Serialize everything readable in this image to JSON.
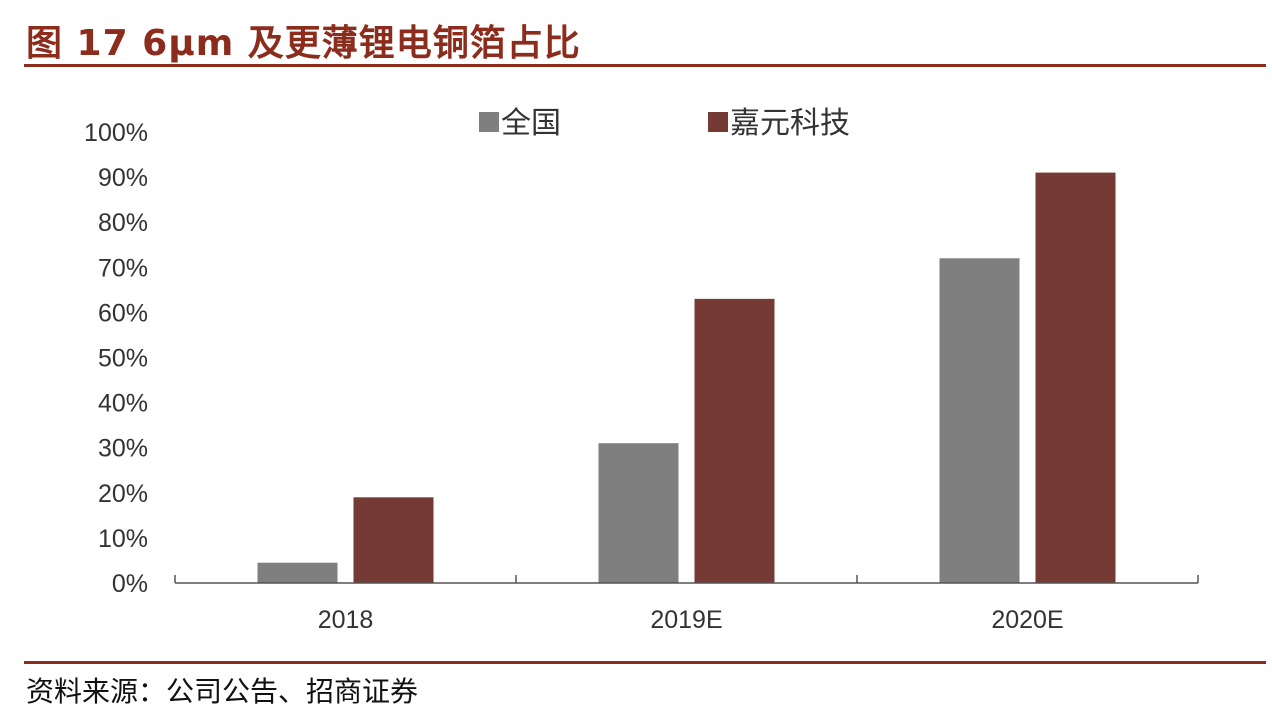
{
  "header": {
    "title": "图 17 6μm 及更薄锂电铜箔占比"
  },
  "footer": {
    "source": "资料来源：公司公告、招商证券"
  },
  "chart_data": {
    "type": "bar",
    "categories": [
      "2018",
      "2019E",
      "2020E"
    ],
    "series": [
      {
        "name": "全国",
        "color": "#7f7f7f",
        "values": [
          4.5,
          31,
          72
        ]
      },
      {
        "name": "嘉元科技",
        "color": "#763a34",
        "values": [
          19,
          63,
          91
        ]
      }
    ],
    "yticks": [
      "0%",
      "10%",
      "20%",
      "30%",
      "40%",
      "50%",
      "60%",
      "70%",
      "80%",
      "90%",
      "100%"
    ],
    "ylim": [
      0,
      100
    ],
    "grid": false,
    "legend": "top-center"
  }
}
